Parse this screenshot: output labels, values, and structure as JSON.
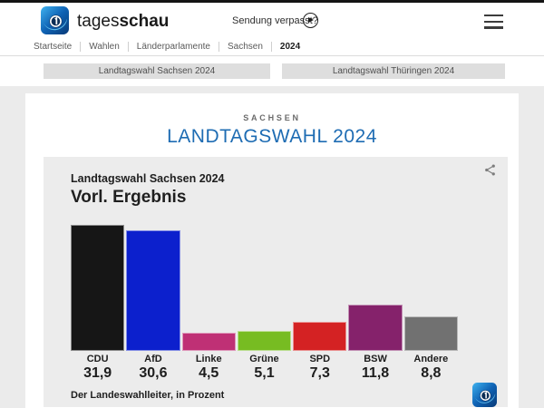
{
  "page": {
    "brand": {
      "name_regular": "tages",
      "name_bold": "schau"
    },
    "header": {
      "sendung_verpasst": "Sendung verpasst?"
    },
    "breadcrumb": [
      "Startseite",
      "Wahlen",
      "Länderparlamente",
      "Sachsen",
      "2024"
    ],
    "tabs": [
      {
        "label": "Landtagswahl Sachsen 2024"
      },
      {
        "label": "Landtagswahl Thüringen 2024"
      }
    ],
    "title": {
      "kicker": "SACHSEN",
      "heading": "LANDTAGSWAHL 2024"
    },
    "icons": {
      "logo": "tagesschau-logo",
      "play": "play-icon",
      "menu": "hamburger-menu-icon",
      "share": "share-icon"
    },
    "colors": {
      "accent_blue": "#1e6cb3",
      "page_background": "#ebebeb",
      "chart_background": "#ececec",
      "topbar": "#141414"
    }
  },
  "chart_data": {
    "type": "bar",
    "title": "Landtagswahl Sachsen 2024",
    "subtitle": "Vorl. Ergebnis",
    "source": "Der Landeswahlleiter, in Prozent",
    "categories": [
      "CDU",
      "AfD",
      "Linke",
      "Grüne",
      "SPD",
      "BSW",
      "Andere"
    ],
    "values": [
      31.9,
      30.6,
      4.5,
      5.1,
      7.3,
      11.8,
      8.8
    ],
    "value_labels": [
      "31,9",
      "30,6",
      "4,5",
      "5,1",
      "7,3",
      "11,8",
      "8,8"
    ],
    "colors": [
      "#161616",
      "#0c20cd",
      "#bf3075",
      "#77bc22",
      "#d42223",
      "#85226b",
      "#717171"
    ],
    "ylim": [
      0,
      35
    ],
    "grid": false,
    "legend": false,
    "axis_hidden": true
  }
}
